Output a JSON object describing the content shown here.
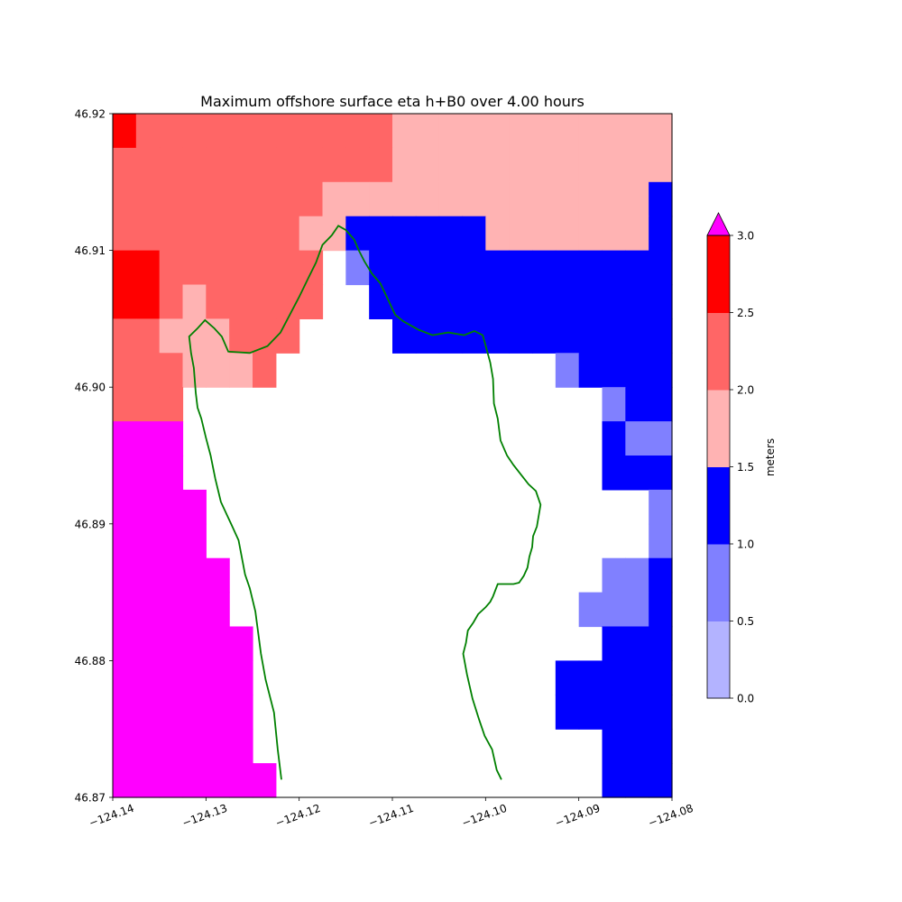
{
  "chart_data": {
    "type": "heatmap",
    "title": "Maximum offshore surface eta h+B0 over 4.00 hours",
    "xlim": [
      -124.14,
      -124.08
    ],
    "ylim": [
      46.87,
      46.92
    ],
    "x_ticks": [
      -124.14,
      -124.13,
      -124.12,
      -124.11,
      -124.1,
      -124.09,
      -124.08
    ],
    "x_tick_labels": [
      "−124.14",
      "−124.13",
      "−124.12",
      "−124.11",
      "−124.10",
      "−124.09",
      "−124.08"
    ],
    "y_ticks": [
      46.87,
      46.88,
      46.89,
      46.9,
      46.91,
      46.92
    ],
    "y_tick_labels": [
      "46.87",
      "46.88",
      "46.89",
      "46.90",
      "46.91",
      "46.92"
    ],
    "grid": false,
    "colorbar": {
      "label": "meters",
      "placement": "right",
      "extend": "max",
      "boundaries": [
        0.0,
        0.5,
        1.0,
        1.5,
        2.0,
        2.5,
        3.0
      ],
      "tick_labels": [
        "0.0",
        "0.5",
        "1.0",
        "1.5",
        "2.0",
        "2.5",
        "3.0"
      ],
      "colors": [
        "#b3b3ff",
        "#8080ff",
        "#0000ff",
        "#ffb3b3",
        "#ff6666",
        "#ff0000"
      ],
      "over_color": "#ff00ff"
    },
    "grid_x_edges": [
      -124.14,
      -124.1375,
      -124.135,
      -124.1325,
      -124.13,
      -124.1275,
      -124.125,
      -124.1225,
      -124.12,
      -124.1175,
      -124.115,
      -124.1125,
      -124.11,
      -124.1075,
      -124.105,
      -124.1025,
      -124.1,
      -124.0975,
      -124.095,
      -124.0925,
      -124.09,
      -124.0875,
      -124.085,
      -124.0825,
      -124.08
    ],
    "grid_y_edges": [
      46.92,
      46.9175,
      46.915,
      46.9125,
      46.91,
      46.9075,
      46.905,
      46.9025,
      46.9,
      46.8975,
      46.895,
      46.8925,
      46.89,
      46.8875,
      46.885,
      46.8825,
      46.88,
      46.8775,
      46.875,
      46.8725,
      46.87
    ],
    "cell_value_legend": {
      "0": "no data",
      "1": "0.5-1.0",
      "2": "1.0-1.5",
      "3": "1.5-2.0",
      "4": "2.0-2.5",
      "5": "2.5-3.0",
      "6": ">3.0"
    },
    "cells": [
      "544444444444333333333333",
      "444444444444333333333333",
      "444444444333333333333332",
      "444444443322222233333332",
      "554444444012222222222222",
      "554344444002222222222222",
      "443334440000222222222222",
      "444333400000000000012222",
      "444000000000000000000122",
      "666000000000000000000211",
      "666000000000000000000222",
      "666600000000000000000001",
      "666600000000000000000001",
      "666660000000000000000112",
      "666660000000000000001112",
      "666666000000000000000222",
      "666666000000000000022222",
      "666666000000000000022222",
      "666666000000000000000222",
      "666666600000000000000222"
    ],
    "coastline": [
      [
        -124.1219,
        46.8713
      ],
      [
        -124.1223,
        46.8735
      ],
      [
        -124.1227,
        46.8762
      ],
      [
        -124.1236,
        46.8786
      ],
      [
        -124.1241,
        46.8805
      ],
      [
        -124.1247,
        46.8836
      ],
      [
        -124.1253,
        46.8853
      ],
      [
        -124.1258,
        46.8863
      ],
      [
        -124.1265,
        46.8888
      ],
      [
        -124.1273,
        46.89
      ],
      [
        -124.1284,
        46.8916
      ],
      [
        -124.129,
        46.8933
      ],
      [
        -124.1295,
        46.895
      ],
      [
        -124.13,
        46.8963
      ],
      [
        -124.1305,
        46.8977
      ],
      [
        -124.1309,
        46.8985
      ],
      [
        -124.1311,
        46.8996
      ],
      [
        -124.1313,
        46.9014
      ],
      [
        -124.1316,
        46.9025
      ],
      [
        -124.1318,
        46.9037
      ],
      [
        -124.1309,
        46.9043
      ],
      [
        -124.1301,
        46.9049
      ],
      [
        -124.1291,
        46.9043
      ],
      [
        -124.1283,
        46.9037
      ],
      [
        -124.1276,
        46.9026
      ],
      [
        -124.1253,
        46.9025
      ],
      [
        -124.1234,
        46.903
      ],
      [
        -124.122,
        46.904
      ],
      [
        -124.121,
        46.9053
      ],
      [
        -124.12,
        46.9066
      ],
      [
        -124.119,
        46.908
      ],
      [
        -124.1182,
        46.9091
      ],
      [
        -124.1175,
        46.9104
      ],
      [
        -124.1165,
        46.9111
      ],
      [
        -124.1158,
        46.9118
      ],
      [
        -124.115,
        46.9115
      ],
      [
        -124.1141,
        46.9108
      ],
      [
        -124.1136,
        46.91
      ],
      [
        -124.113,
        46.9092
      ],
      [
        -124.1122,
        46.9083
      ],
      [
        -124.1113,
        46.9076
      ],
      [
        -124.1106,
        46.9066
      ],
      [
        -124.1097,
        46.9053
      ],
      [
        -124.1088,
        46.9048
      ],
      [
        -124.1072,
        46.9042
      ],
      [
        -124.1057,
        46.9038
      ],
      [
        -124.104,
        46.904
      ],
      [
        -124.1023,
        46.9038
      ],
      [
        -124.1012,
        46.9041
      ],
      [
        -124.1003,
        46.9038
      ],
      [
        -124.0995,
        46.9018
      ],
      [
        -124.0992,
        46.9006
      ],
      [
        -124.0991,
        46.8988
      ],
      [
        -124.0987,
        46.8977
      ],
      [
        -124.0984,
        46.8961
      ],
      [
        -124.0977,
        46.895
      ],
      [
        -124.097,
        46.8943
      ],
      [
        -124.0962,
        46.8936
      ],
      [
        -124.0954,
        46.8929
      ],
      [
        -124.0946,
        46.8924
      ],
      [
        -124.0941,
        46.8914
      ],
      [
        -124.0945,
        46.8898
      ],
      [
        -124.0949,
        46.8891
      ],
      [
        -124.095,
        46.8883
      ],
      [
        -124.0953,
        46.8876
      ],
      [
        -124.0955,
        46.8868
      ],
      [
        -124.0959,
        46.8862
      ],
      [
        -124.0964,
        46.8857
      ],
      [
        -124.097,
        46.8856
      ],
      [
        -124.0981,
        46.8856
      ],
      [
        -124.0987,
        46.8856
      ],
      [
        -124.0992,
        46.8847
      ],
      [
        -124.0995,
        46.8843
      ],
      [
        -124.1,
        46.8839
      ],
      [
        -124.1008,
        46.8834
      ],
      [
        -124.1013,
        46.8828
      ],
      [
        -124.1019,
        46.8822
      ],
      [
        -124.1021,
        46.8813
      ],
      [
        -124.1024,
        46.8805
      ],
      [
        -124.102,
        46.879
      ],
      [
        -124.1014,
        46.8772
      ],
      [
        -124.1007,
        46.8757
      ],
      [
        -124.1001,
        46.8745
      ],
      [
        -124.0993,
        46.8735
      ],
      [
        -124.0988,
        46.872
      ],
      [
        -124.0983,
        46.8713
      ]
    ],
    "coastline_color": "#008000"
  }
}
